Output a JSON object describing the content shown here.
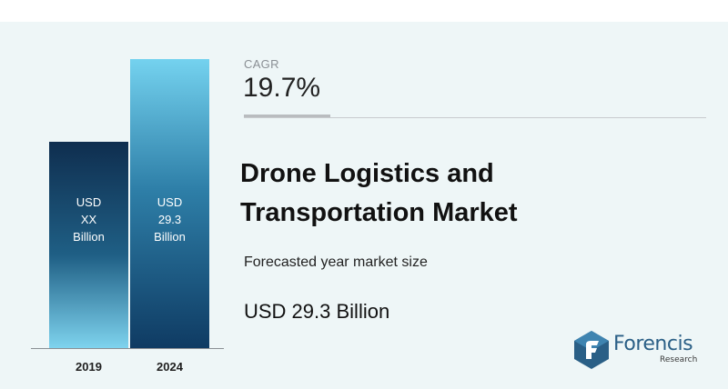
{
  "chart_data": {
    "type": "bar",
    "categories": [
      "2019",
      "2024"
    ],
    "series": [
      {
        "values": [
          null,
          29.3
        ]
      }
    ],
    "bar_labels": [
      [
        "USD",
        "XX",
        "Billion"
      ],
      [
        "USD",
        "29.3",
        "Billion"
      ]
    ],
    "estimated_values": [
      20.9,
      29.3
    ],
    "unit": "USD Billion",
    "ylim": [
      0,
      29.3
    ],
    "grid": false,
    "colors": [
      "#0f2e4f",
      "#74d2ef"
    ]
  },
  "info": {
    "cagr_label": "CAGR",
    "cagr_value": "19.7%",
    "title_line1": "Drone Logistics and",
    "title_line2": "Transportation Market",
    "subtitle": "Forecasted year market size",
    "market_size": "USD 29.3 Billion"
  },
  "logo": {
    "name": "Forencis",
    "sub": "Research",
    "icon": "forencis-logo-icon",
    "color": "#2a5f86"
  }
}
